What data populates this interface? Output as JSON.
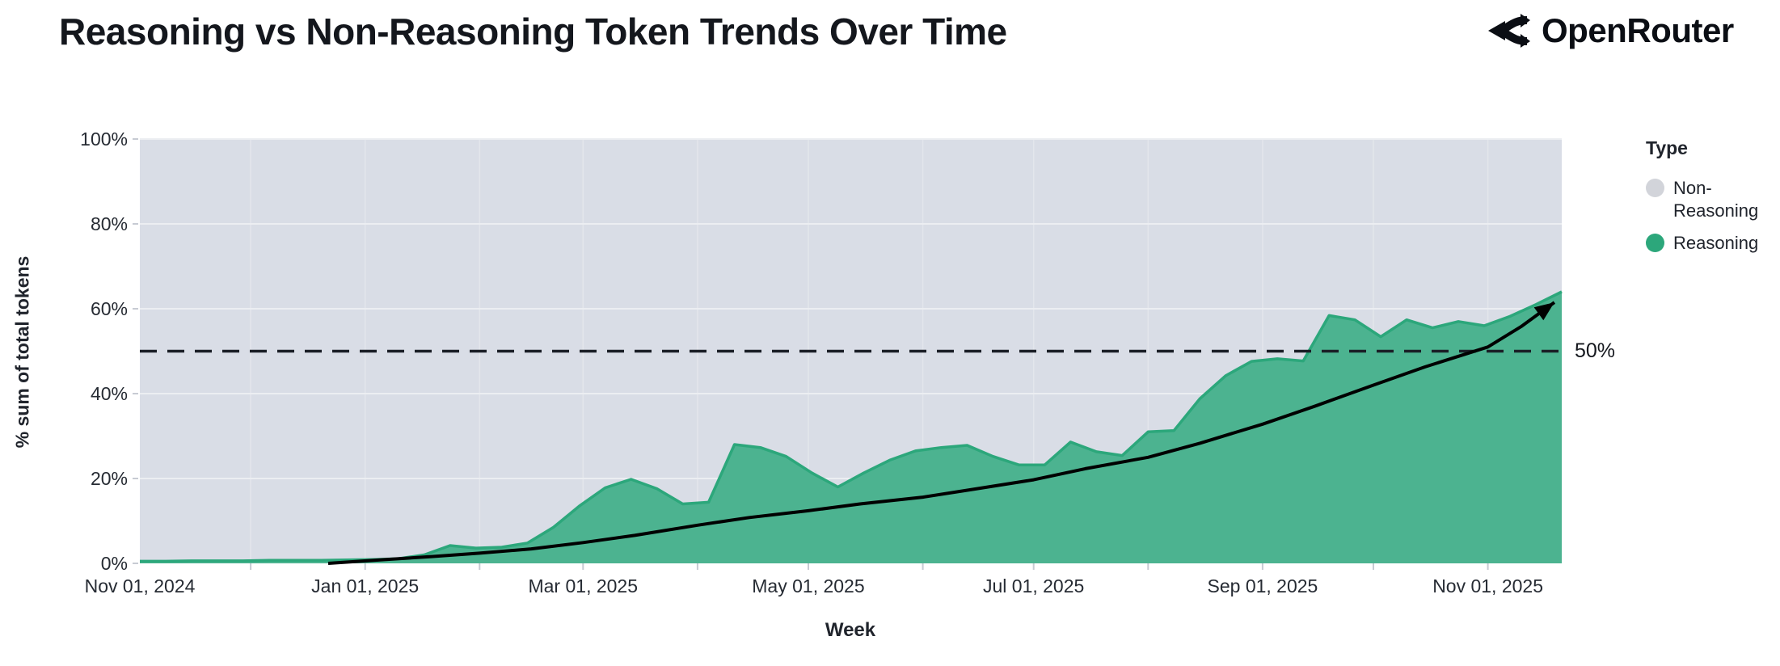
{
  "header": {
    "title": "Reasoning vs Non-Reasoning Token Trends Over Time",
    "brand": "OpenRouter",
    "brand_icon": "openrouter-split-route-icon"
  },
  "chart_data": {
    "type": "area",
    "stacked_percent": true,
    "title": "Reasoning vs Non-Reasoning Token Trends Over Time",
    "xlabel": "Week",
    "ylabel": "% sum of total tokens",
    "ylim": [
      0,
      100
    ],
    "x_domain": [
      "2024-11-01",
      "2025-11-21"
    ],
    "grid": "on",
    "legend_position": "right",
    "y_ticks": [
      {
        "value": 0,
        "label": "0%"
      },
      {
        "value": 20,
        "label": "20%"
      },
      {
        "value": 40,
        "label": "40%"
      },
      {
        "value": 60,
        "label": "60%"
      },
      {
        "value": 80,
        "label": "80%"
      },
      {
        "value": 100,
        "label": "100%"
      }
    ],
    "x_ticks": [
      {
        "date": "2024-11-01",
        "label": "Nov 01, 2024"
      },
      {
        "date": "2025-01-01",
        "label": "Jan 01, 2025"
      },
      {
        "date": "2025-03-01",
        "label": "Mar 01, 2025"
      },
      {
        "date": "2025-05-01",
        "label": "May 01, 2025"
      },
      {
        "date": "2025-07-01",
        "label": "Jul 01, 2025"
      },
      {
        "date": "2025-09-01",
        "label": "Sep 01, 2025"
      },
      {
        "date": "2025-11-01",
        "label": "Nov 01, 2025"
      }
    ],
    "month_gridlines": [
      "2024-12-01",
      "2025-01-01",
      "2025-02-01",
      "2025-03-01",
      "2025-04-01",
      "2025-05-01",
      "2025-06-01",
      "2025-07-01",
      "2025-08-01",
      "2025-09-01",
      "2025-10-01",
      "2025-11-01"
    ],
    "weeks": [
      "2024-11-01",
      "2024-11-08",
      "2024-11-15",
      "2024-11-22",
      "2024-11-29",
      "2024-12-06",
      "2024-12-13",
      "2024-12-20",
      "2024-12-27",
      "2025-01-03",
      "2025-01-10",
      "2025-01-17",
      "2025-01-24",
      "2025-01-31",
      "2025-02-07",
      "2025-02-14",
      "2025-02-21",
      "2025-02-28",
      "2025-03-07",
      "2025-03-14",
      "2025-03-21",
      "2025-03-28",
      "2025-04-04",
      "2025-04-11",
      "2025-04-18",
      "2025-04-25",
      "2025-05-02",
      "2025-05-09",
      "2025-05-16",
      "2025-05-23",
      "2025-05-30",
      "2025-06-06",
      "2025-06-13",
      "2025-06-20",
      "2025-06-27",
      "2025-07-04",
      "2025-07-11",
      "2025-07-18",
      "2025-07-25",
      "2025-08-01",
      "2025-08-08",
      "2025-08-15",
      "2025-08-22",
      "2025-08-29",
      "2025-09-05",
      "2025-09-12",
      "2025-09-19",
      "2025-09-26",
      "2025-10-03",
      "2025-10-10",
      "2025-10-17",
      "2025-10-24",
      "2025-10-31",
      "2025-11-07",
      "2025-11-14",
      "2025-11-21"
    ],
    "series": [
      {
        "name": "Non-Reasoning",
        "color": "#D2D4DA",
        "derived": "100 minus Reasoning (fills remainder of 100% stack)"
      },
      {
        "name": "Reasoning",
        "color": "#4CB390",
        "values": [
          0.5,
          0.5,
          0.6,
          0.6,
          0.6,
          0.7,
          0.7,
          0.7,
          0.8,
          0.9,
          1.1,
          2.0,
          4.2,
          3.6,
          3.8,
          4.8,
          8.5,
          13.5,
          17.8,
          19.8,
          17.6,
          14.0,
          14.4,
          28.0,
          27.3,
          25.2,
          21.3,
          18.0,
          21.3,
          24.3,
          26.5,
          27.3,
          27.8,
          25.2,
          23.2,
          23.2,
          28.6,
          26.3,
          25.4,
          31.0,
          31.3,
          38.8,
          44.2,
          47.6,
          48.2,
          47.7,
          58.4,
          57.4,
          53.4,
          57.4,
          55.5,
          57.0,
          56.0,
          58.2,
          61.0,
          64.0
        ]
      }
    ],
    "reference_line": {
      "value": 50,
      "label": "50%",
      "style": "dashed-black"
    },
    "trend": {
      "style": "black-arrow-curve",
      "points": [
        [
          "2024-12-22",
          0
        ],
        [
          "2025-01-05",
          0.8
        ],
        [
          "2025-01-19",
          1.6
        ],
        [
          "2025-02-01",
          2.4
        ],
        [
          "2025-02-15",
          3.4
        ],
        [
          "2025-03-01",
          4.9
        ],
        [
          "2025-03-15",
          6.6
        ],
        [
          "2025-04-01",
          9.0
        ],
        [
          "2025-04-15",
          10.8
        ],
        [
          "2025-05-01",
          12.4
        ],
        [
          "2025-05-15",
          14.0
        ],
        [
          "2025-06-01",
          15.6
        ],
        [
          "2025-06-15",
          17.5
        ],
        [
          "2025-07-01",
          19.7
        ],
        [
          "2025-07-15",
          22.3
        ],
        [
          "2025-08-01",
          25.0
        ],
        [
          "2025-08-15",
          28.3
        ],
        [
          "2025-09-01",
          32.8
        ],
        [
          "2025-09-15",
          37.0
        ],
        [
          "2025-10-01",
          42.0
        ],
        [
          "2025-10-15",
          46.3
        ],
        [
          "2025-11-01",
          51.0
        ],
        [
          "2025-11-10",
          55.8
        ],
        [
          "2025-11-19",
          61.5
        ]
      ]
    },
    "legend": {
      "title": "Type",
      "items": [
        {
          "label": "Non-Reasoning",
          "color": "#D2D4DA"
        },
        {
          "label": "Reasoning",
          "color": "#2CA77B"
        }
      ]
    },
    "colors": {
      "plot_bg": "#D9DDE6",
      "h_gridline": "#ECEEF2",
      "v_gridline": "#E3E6EC",
      "area_fill": "#4CB390",
      "area_stroke": "#2CA77B",
      "tick_mark": "#C7CBD3",
      "reference": "#1A1E26",
      "trend": "#000000"
    }
  }
}
